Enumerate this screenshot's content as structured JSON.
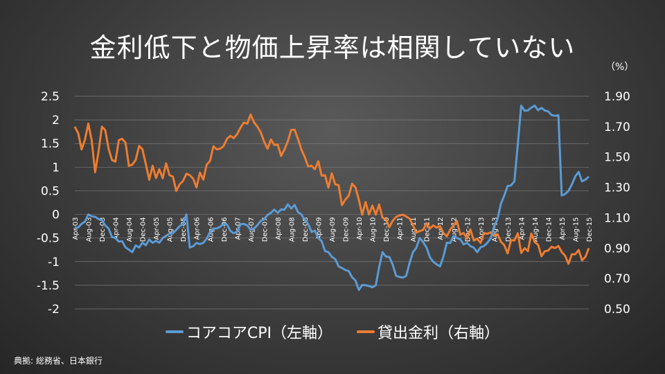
{
  "title": "金利低下と物価上昇率は相関していない",
  "source": "典拠: 総務省、日本銀行",
  "colors": {
    "series1": "#5b9bd5",
    "series2": "#ed7d31",
    "grid": "#7a7a7a",
    "text": "#ffffff"
  },
  "chart_data": {
    "type": "line",
    "y_right_unit": "（%）",
    "y_left": {
      "min": -2,
      "max": 2.5,
      "ticks": [
        "2.5",
        "2",
        "1.5",
        "1",
        "0.5",
        "0",
        "-0.5",
        "-1",
        "-1.5",
        "-2"
      ]
    },
    "y_right": {
      "min": 0.5,
      "max": 1.9,
      "ticks": [
        "1.90",
        "1.70",
        "1.50",
        "1.30",
        "1.10",
        "0.90",
        "0.70",
        "0.50"
      ]
    },
    "x_start": "2003-04",
    "x_end": "2015-12",
    "x_labels": [
      "Apr-03",
      "Aug-03",
      "Dec-03",
      "Apr-04",
      "Aug-04",
      "Dec-04",
      "Apr-05",
      "Aug-05",
      "Dec-05",
      "Apr-06",
      "Aug-06",
      "Dec-06",
      "Apr-07",
      "Aug-07",
      "Dec-07",
      "Apr-08",
      "Aug-08",
      "Dec-08",
      "Apr-09",
      "Aug-09",
      "Dec-09",
      "Apr-10",
      "Aug-10",
      "Dec-10",
      "Apr-11",
      "Aug-11",
      "Dec-11",
      "Apr-12",
      "Aug-12",
      "Dec-12",
      "Apr-13",
      "Aug-13",
      "Dec-13",
      "Apr-14",
      "Aug-14",
      "Dec-14",
      "Apr-15",
      "Aug-15",
      "Dec-15"
    ],
    "series": [
      {
        "name": "コアコアCPI（左軸）",
        "axis": "left",
        "anchors": [
          [
            "2003-04",
            -0.3
          ],
          [
            "2003-06",
            -0.2
          ],
          [
            "2003-08",
            0.0
          ],
          [
            "2003-11",
            -0.1
          ],
          [
            "2004-02",
            -0.3
          ],
          [
            "2004-04",
            -0.5
          ],
          [
            "2004-07",
            -0.7
          ],
          [
            "2004-09",
            -0.8
          ],
          [
            "2004-12",
            -0.6
          ],
          [
            "2005-03",
            -0.6
          ],
          [
            "2005-06",
            -0.5
          ],
          [
            "2005-09",
            -0.4
          ],
          [
            "2005-12",
            -0.2
          ],
          [
            "2006-01",
            0.0
          ],
          [
            "2006-02",
            -0.7
          ],
          [
            "2006-06",
            -0.6
          ],
          [
            "2006-09",
            -0.3
          ],
          [
            "2006-12",
            -0.2
          ],
          [
            "2007-03",
            -0.4
          ],
          [
            "2007-06",
            -0.2
          ],
          [
            "2007-09",
            -0.3
          ],
          [
            "2007-12",
            -0.1
          ],
          [
            "2008-03",
            0.1
          ],
          [
            "2008-06",
            0.1
          ],
          [
            "2008-09",
            0.2
          ],
          [
            "2008-11",
            0.0
          ],
          [
            "2009-01",
            -0.2
          ],
          [
            "2009-04",
            -0.5
          ],
          [
            "2009-07",
            -0.8
          ],
          [
            "2009-10",
            -1.1
          ],
          [
            "2010-01",
            -1.2
          ],
          [
            "2010-03",
            -1.4
          ],
          [
            "2010-04",
            -1.6
          ],
          [
            "2010-06",
            -1.5
          ],
          [
            "2010-09",
            -1.5
          ],
          [
            "2010-11",
            -0.8
          ],
          [
            "2011-01",
            -0.9
          ],
          [
            "2011-03",
            -1.3
          ],
          [
            "2011-06",
            -1.3
          ],
          [
            "2011-08",
            -0.8
          ],
          [
            "2011-10",
            -0.5
          ],
          [
            "2011-12",
            -0.7
          ],
          [
            "2012-02",
            -1.0
          ],
          [
            "2012-04",
            -1.1
          ],
          [
            "2012-06",
            -0.6
          ],
          [
            "2012-09",
            -0.5
          ],
          [
            "2012-12",
            -0.6
          ],
          [
            "2013-03",
            -0.8
          ],
          [
            "2013-06",
            -0.6
          ],
          [
            "2013-09",
            -0.1
          ],
          [
            "2013-11",
            0.4
          ],
          [
            "2013-12",
            0.6
          ],
          [
            "2014-02",
            0.7
          ],
          [
            "2014-04",
            2.3
          ],
          [
            "2014-06",
            2.2
          ],
          [
            "2014-08",
            2.3
          ],
          [
            "2014-11",
            2.2
          ],
          [
            "2015-01",
            2.1
          ],
          [
            "2015-03",
            2.1
          ],
          [
            "2015-04",
            0.4
          ],
          [
            "2015-06",
            0.5
          ],
          [
            "2015-09",
            0.9
          ],
          [
            "2015-10",
            0.7
          ],
          [
            "2015-12",
            0.8
          ]
        ]
      },
      {
        "name": "貸出金利（右軸）",
        "axis": "right",
        "anchors": [
          [
            "2003-04",
            1.7
          ],
          [
            "2003-06",
            1.55
          ],
          [
            "2003-08",
            1.72
          ],
          [
            "2003-10",
            1.4
          ],
          [
            "2003-12",
            1.7
          ],
          [
            "2004-03",
            1.48
          ],
          [
            "2004-06",
            1.62
          ],
          [
            "2004-09",
            1.45
          ],
          [
            "2004-12",
            1.55
          ],
          [
            "2005-02",
            1.35
          ],
          [
            "2005-05",
            1.42
          ],
          [
            "2005-08",
            1.38
          ],
          [
            "2005-11",
            1.32
          ],
          [
            "2006-02",
            1.38
          ],
          [
            "2006-04",
            1.3
          ],
          [
            "2006-07",
            1.45
          ],
          [
            "2006-10",
            1.55
          ],
          [
            "2007-01",
            1.62
          ],
          [
            "2007-04",
            1.65
          ],
          [
            "2007-07",
            1.72
          ],
          [
            "2007-08",
            1.78
          ],
          [
            "2007-10",
            1.7
          ],
          [
            "2007-12",
            1.6
          ],
          [
            "2008-03",
            1.58
          ],
          [
            "2008-06",
            1.55
          ],
          [
            "2008-09",
            1.68
          ],
          [
            "2008-12",
            1.5
          ],
          [
            "2009-03",
            1.42
          ],
          [
            "2009-06",
            1.38
          ],
          [
            "2009-09",
            1.32
          ],
          [
            "2009-12",
            1.22
          ],
          [
            "2010-03",
            1.3
          ],
          [
            "2010-05",
            1.12
          ],
          [
            "2010-08",
            1.18
          ],
          [
            "2010-11",
            1.1
          ],
          [
            "2011-02",
            1.08
          ],
          [
            "2011-05",
            1.12
          ],
          [
            "2011-08",
            1.05
          ],
          [
            "2011-11",
            1.02
          ],
          [
            "2012-02",
            1.05
          ],
          [
            "2012-05",
            1.0
          ],
          [
            "2012-08",
            1.05
          ],
          [
            "2012-11",
            1.0
          ],
          [
            "2013-02",
            0.95
          ],
          [
            "2013-05",
            1.0
          ],
          [
            "2013-08",
            0.98
          ],
          [
            "2013-11",
            0.92
          ],
          [
            "2014-02",
            0.95
          ],
          [
            "2014-05",
            0.9
          ],
          [
            "2014-08",
            0.94
          ],
          [
            "2014-11",
            0.88
          ],
          [
            "2015-02",
            0.9
          ],
          [
            "2015-05",
            0.85
          ],
          [
            "2015-08",
            0.86
          ],
          [
            "2015-10",
            0.82
          ],
          [
            "2015-12",
            0.9
          ]
        ]
      }
    ]
  }
}
